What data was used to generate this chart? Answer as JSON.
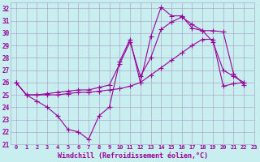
{
  "xlabel": "Windchill (Refroidissement éolien,°C)",
  "background_color": "#c8eef0",
  "grid_color": "#aaaacc",
  "line_color": "#990099",
  "xlim": [
    -0.5,
    23
  ],
  "ylim": [
    21,
    32.5
  ],
  "xticks": [
    0,
    1,
    2,
    3,
    4,
    5,
    6,
    7,
    8,
    9,
    10,
    11,
    12,
    13,
    14,
    15,
    16,
    17,
    18,
    19,
    20,
    21,
    22,
    23
  ],
  "yticks": [
    21,
    22,
    23,
    24,
    25,
    26,
    27,
    28,
    29,
    30,
    31,
    32
  ],
  "series1_x": [
    0,
    1,
    2,
    3,
    4,
    5,
    6,
    7,
    8,
    9,
    10,
    11,
    12,
    13,
    14,
    15,
    16,
    17,
    18,
    19,
    20,
    21,
    22
  ],
  "series1_y": [
    26.0,
    25.0,
    24.5,
    24.0,
    23.3,
    22.2,
    22.0,
    21.4,
    23.3,
    24.0,
    27.7,
    29.5,
    26.0,
    29.7,
    32.1,
    31.4,
    31.4,
    30.4,
    30.2,
    29.3,
    27.0,
    26.5,
    26.0
  ],
  "series2_x": [
    0,
    1,
    2,
    3,
    4,
    5,
    6,
    7,
    8,
    9,
    10,
    11,
    12,
    13,
    14,
    15,
    16,
    17,
    18,
    19,
    20,
    21,
    22
  ],
  "series2_y": [
    26.0,
    25.0,
    25.0,
    25.0,
    25.0,
    25.1,
    25.2,
    25.2,
    25.3,
    25.4,
    25.5,
    25.7,
    26.0,
    26.6,
    27.2,
    27.8,
    28.4,
    29.0,
    29.5,
    29.5,
    25.7,
    25.9,
    26.0
  ],
  "series3_x": [
    0,
    1,
    2,
    3,
    4,
    5,
    6,
    7,
    8,
    9,
    10,
    11,
    12,
    13,
    14,
    15,
    16,
    17,
    18,
    19,
    20,
    21,
    22
  ],
  "series3_y": [
    26.0,
    25.0,
    25.0,
    25.1,
    25.2,
    25.3,
    25.4,
    25.4,
    25.6,
    25.8,
    27.5,
    29.3,
    26.5,
    28.0,
    30.3,
    30.9,
    31.3,
    30.7,
    30.2,
    30.2,
    30.1,
    26.7,
    25.8
  ],
  "xlabel_fontsize": 6,
  "tick_fontsize": 5,
  "linewidth": 0.8,
  "markersize": 2.5
}
